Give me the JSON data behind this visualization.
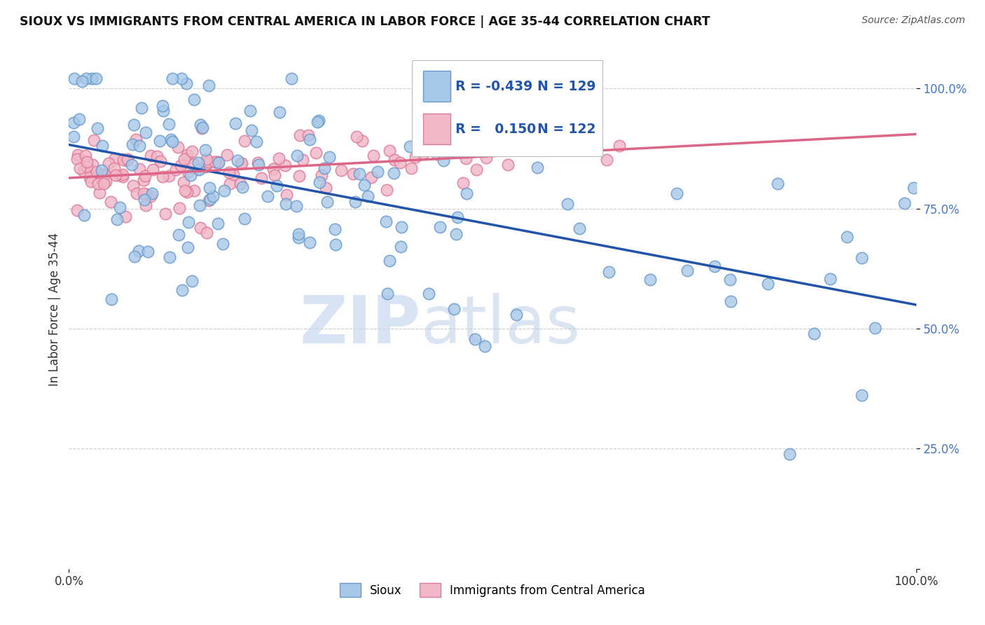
{
  "title": "SIOUX VS IMMIGRANTS FROM CENTRAL AMERICA IN LABOR FORCE | AGE 35-44 CORRELATION CHART",
  "source": "Source: ZipAtlas.com",
  "ylabel": "In Labor Force | Age 35-44",
  "watermark_zip": "ZIP",
  "watermark_atlas": "atlas",
  "xlim": [
    0.0,
    1.0
  ],
  "ylim": [
    0.0,
    1.08
  ],
  "ytick_vals": [
    0.0,
    0.25,
    0.5,
    0.75,
    1.0
  ],
  "ytick_labels": [
    "",
    "25.0%",
    "50.0%",
    "75.0%",
    "100.0%"
  ],
  "xtick_vals": [
    0.0,
    1.0
  ],
  "xtick_labels": [
    "0.0%",
    "100.0%"
  ],
  "blue_R": -0.439,
  "blue_N": 129,
  "pink_R": 0.15,
  "pink_N": 122,
  "blue_dot_color": "#a8c8e8",
  "blue_dot_edge": "#6699cc",
  "pink_dot_color": "#f0b8c8",
  "pink_dot_edge": "#e07898",
  "blue_line_color": "#2255aa",
  "pink_line_color": "#dd6688",
  "legend_text_color": "#2255aa",
  "legend_N_color": "#111111",
  "ytick_color": "#4477cc",
  "background_color": "#ffffff",
  "grid_color": "#cccccc",
  "title_color": "#111111",
  "source_color": "#555555",
  "ylabel_color": "#333333"
}
